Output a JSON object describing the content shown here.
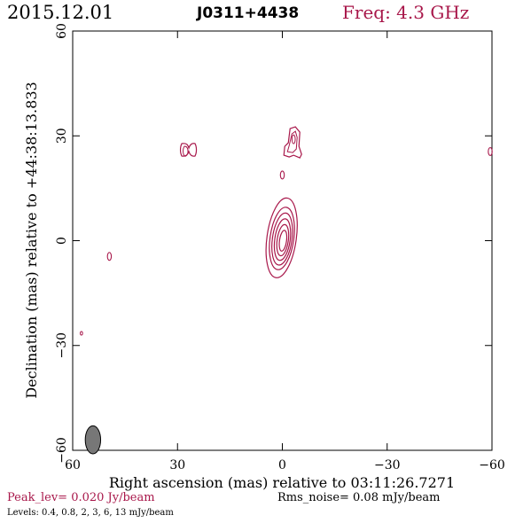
{
  "header": {
    "date": "2015.12.01",
    "source": "J0311+4438",
    "freq": "Freq: 4.3 GHz"
  },
  "footer": {
    "peak": "Peak_lev=  0.020 Jy/beam",
    "rms": "Rms_noise= 0.08 mJy/beam",
    "levels": "Levels: 0.4, 0.8,   2,   3,   6,  13 mJy/beam"
  },
  "colors": {
    "contour": "#a8174a",
    "beam_fill": "#777777",
    "frame": "#000000"
  },
  "chart_data": {
    "type": "contour",
    "xlabel": "Right ascension (mas) relative to 03:11:26.7271",
    "ylabel": "Declination (mas) relative to +44:38:13.833",
    "xlim": [
      60,
      -60
    ],
    "ylim": [
      -60,
      60
    ],
    "x_ticks": [
      60,
      30,
      0,
      -30,
      -60
    ],
    "y_ticks": [
      60,
      30,
      0,
      -30,
      -60
    ],
    "x_tick_labels": [
      "60",
      "30",
      "0",
      "−30",
      "−60"
    ],
    "y_tick_labels": [
      "60",
      "30",
      "0",
      "−30",
      "−60"
    ],
    "contour_levels_mJy": [
      0.4,
      0.8,
      2,
      3,
      6,
      13
    ],
    "core": {
      "ra": 0.2,
      "dec": 0.8,
      "major_axis_mas": [
        11.5,
        9.0,
        7.5,
        6.0,
        4.5,
        3.0
      ],
      "minor_axis_mas": [
        4.2,
        3.4,
        2.8,
        2.2,
        1.6,
        1.0
      ],
      "pa_deg": 8
    },
    "components": [
      {
        "ra": 26.5,
        "dec": 25.5,
        "shape": "double"
      },
      {
        "ra": -4.5,
        "dec": 27.5,
        "shape": "jet-blob"
      },
      {
        "ra": 0.0,
        "dec": 18.8,
        "shape": "small"
      },
      {
        "ra": 49.5,
        "dec": -4.5,
        "shape": "small"
      },
      {
        "ra": 57.5,
        "dec": -26.5,
        "shape": "dot"
      },
      {
        "ra": -59.5,
        "dec": 25.5,
        "shape": "small"
      }
    ],
    "beam": {
      "ra": 54.2,
      "dec": -57.0,
      "major_mas": 4.0,
      "minor_mas": 2.2,
      "pa_deg": 0
    }
  }
}
